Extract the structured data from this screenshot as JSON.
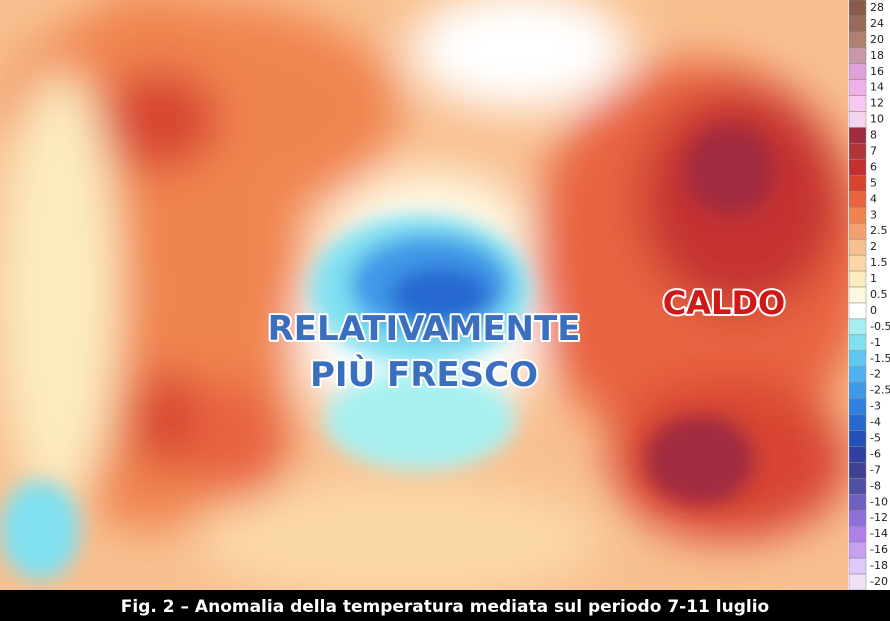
{
  "annotations": {
    "cool_line1": "RELATIVAMENTE",
    "cool_line2": "PIÙ FRESCO",
    "warm": "CALDO"
  },
  "caption": "Fig. 2 – Anomalia della temperatura mediata sul periodo 7-11 luglio",
  "legend": {
    "levels": [
      28,
      24,
      20,
      18,
      16,
      14,
      12,
      10,
      8,
      7,
      6,
      5,
      4,
      3,
      2.5,
      2,
      1.5,
      1,
      0.5,
      0,
      -0.5,
      -1,
      -1.5,
      -2,
      -2.5,
      -3,
      -4,
      -5,
      -6,
      -7,
      -8,
      -10,
      -12,
      -14,
      -16,
      -18,
      -20
    ],
    "colors": [
      "#8a5a4a",
      "#9a6a5a",
      "#b08070",
      "#c898a8",
      "#e0a0d8",
      "#f0b0e8",
      "#f8c8f0",
      "#f4d4f0",
      "#a02c40",
      "#b03438",
      "#c43030",
      "#d84430",
      "#e86440",
      "#f08450",
      "#f4a070",
      "#f8c090",
      "#fcd8a8",
      "#fcecc0",
      "#fff8e0",
      "#ffffff",
      "#a8f0f0",
      "#80e0f0",
      "#60c8f0",
      "#50b0f0",
      "#4098e8",
      "#3080e0",
      "#2868d0",
      "#2050b8",
      "#3040a0",
      "#404090",
      "#5050a0",
      "#7060c0",
      "#9070d8",
      "#b080e8",
      "#c8a0f0",
      "#e0c8f8",
      "#f0e0f8"
    ]
  }
}
